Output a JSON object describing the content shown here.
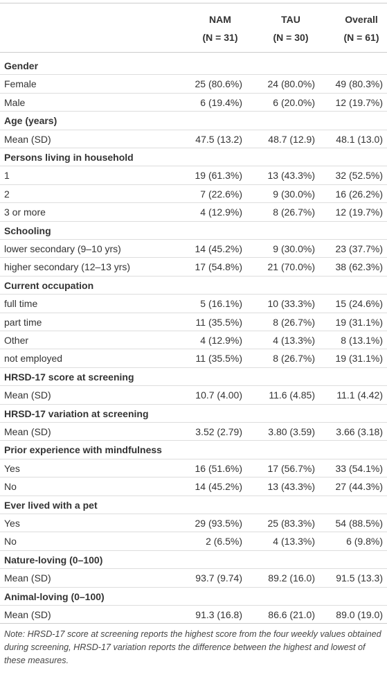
{
  "table": {
    "columns": [
      {
        "name": "NAM",
        "n": "(N = 31)"
      },
      {
        "name": "TAU",
        "n": "(N = 30)"
      },
      {
        "name": "Overall",
        "n": "(N = 61)"
      }
    ],
    "sections": [
      {
        "title": "Gender",
        "rows": [
          {
            "label": "Female",
            "values": [
              "25 (80.6%)",
              "24 (80.0%)",
              "49 (80.3%)"
            ]
          },
          {
            "label": "Male",
            "values": [
              "6 (19.4%)",
              "6 (20.0%)",
              "12 (19.7%)"
            ]
          }
        ]
      },
      {
        "title": "Age (years)",
        "rows": [
          {
            "label": "Mean (SD)",
            "values": [
              "47.5 (13.2)",
              "48.7 (12.9)",
              "48.1 (13.0)"
            ]
          }
        ]
      },
      {
        "title": "Persons living in household",
        "rows": [
          {
            "label": "1",
            "values": [
              "19 (61.3%)",
              "13 (43.3%)",
              "32 (52.5%)"
            ]
          },
          {
            "label": "2",
            "values": [
              "7 (22.6%)",
              "9 (30.0%)",
              "16 (26.2%)"
            ]
          },
          {
            "label": "3 or more",
            "values": [
              "4 (12.9%)",
              "8 (26.7%)",
              "12 (19.7%)"
            ]
          }
        ]
      },
      {
        "title": "Schooling",
        "rows": [
          {
            "label": "lower secondary (9–10 yrs)",
            "values": [
              "14 (45.2%)",
              "9 (30.0%)",
              "23 (37.7%)"
            ]
          },
          {
            "label": "higher secondary (12–13 yrs)",
            "values": [
              "17 (54.8%)",
              "21 (70.0%)",
              "38 (62.3%)"
            ]
          }
        ]
      },
      {
        "title": "Current occupation",
        "rows": [
          {
            "label": "full time",
            "values": [
              "5 (16.1%)",
              "10 (33.3%)",
              "15 (24.6%)"
            ]
          },
          {
            "label": "part time",
            "values": [
              "11 (35.5%)",
              "8 (26.7%)",
              "19 (31.1%)"
            ]
          },
          {
            "label": "Other",
            "values": [
              "4 (12.9%)",
              "4 (13.3%)",
              "8 (13.1%)"
            ]
          },
          {
            "label": "not employed",
            "values": [
              "11 (35.5%)",
              "8 (26.7%)",
              "19 (31.1%)"
            ]
          }
        ]
      },
      {
        "title": "HRSD-17 score at screening",
        "rows": [
          {
            "label": "Mean (SD)",
            "values": [
              "10.7 (4.00)",
              "11.6 (4.85)",
              "11.1 (4.42)"
            ]
          }
        ]
      },
      {
        "title": "HRSD-17 variation at screening",
        "rows": [
          {
            "label": "Mean (SD)",
            "values": [
              "3.52 (2.79)",
              "3.80 (3.59)",
              "3.66 (3.18)"
            ]
          }
        ]
      },
      {
        "title": "Prior experience with mindfulness",
        "rows": [
          {
            "label": "Yes",
            "values": [
              "16 (51.6%)",
              "17 (56.7%)",
              "33 (54.1%)"
            ]
          },
          {
            "label": "No",
            "values": [
              "14 (45.2%)",
              "13 (43.3%)",
              "27 (44.3%)"
            ]
          }
        ]
      },
      {
        "title": "Ever lived with a pet",
        "rows": [
          {
            "label": "Yes",
            "values": [
              "29 (93.5%)",
              "25 (83.3%)",
              "54 (88.5%)"
            ]
          },
          {
            "label": "No",
            "values": [
              "2 (6.5%)",
              "4 (13.3%)",
              "6 (9.8%)"
            ]
          }
        ]
      },
      {
        "title": "Nature-loving (0–100)",
        "rows": [
          {
            "label": "Mean (SD)",
            "values": [
              "93.7 (9.74)",
              "89.2 (16.0)",
              "91.5 (13.3)"
            ]
          }
        ]
      },
      {
        "title": "Animal-loving (0–100)",
        "rows": [
          {
            "label": "Mean (SD)",
            "values": [
              "91.3 (16.8)",
              "86.6 (21.0)",
              "89.0 (19.0)"
            ]
          }
        ]
      }
    ]
  },
  "note": "Note: HRSD-17 score at screening reports the highest score from the four weekly values obtained during screening, HRSD-17 variation reports the difference between the highest and lowest of these measures."
}
